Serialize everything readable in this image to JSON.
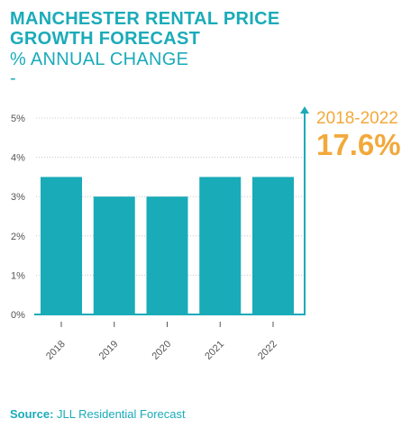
{
  "header": {
    "title_line1": "MANCHESTER RENTAL PRICE",
    "title_line2": "GROWTH FORECAST",
    "subtitle": "% ANNUAL CHANGE",
    "dash": "-"
  },
  "callout": {
    "period": "2018-2022",
    "value": "17.6%"
  },
  "source": {
    "label": "Source:",
    "text": " JLL Residential Forecast"
  },
  "colors": {
    "bar": "#1AABB9",
    "accent": "#F2A93B",
    "axis": "#1AABB9",
    "grid": "#C8C8C8",
    "tick_label": "#555555"
  },
  "chart_data": {
    "type": "bar",
    "categories": [
      "2018",
      "2019",
      "2020",
      "2021",
      "2022"
    ],
    "values": [
      3.5,
      3.0,
      3.0,
      3.5,
      3.5
    ],
    "ylim": [
      0,
      5
    ],
    "yticks": [
      "0%",
      "1%",
      "2%",
      "3%",
      "4%",
      "5%"
    ],
    "grid": true
  }
}
